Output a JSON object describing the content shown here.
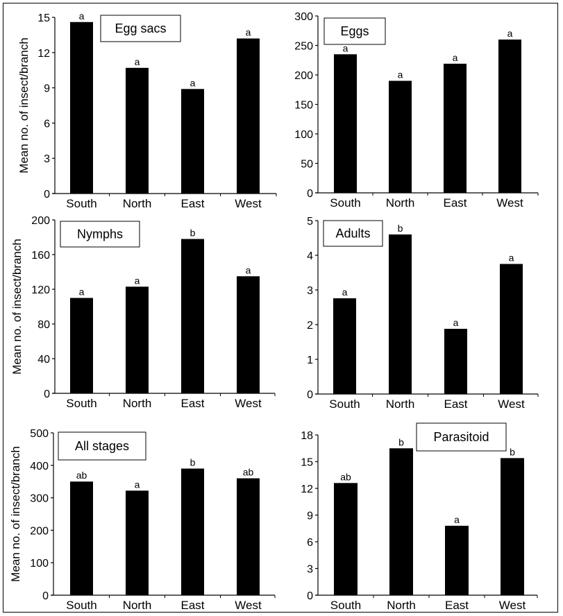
{
  "chart_data": [
    {
      "type": "bar",
      "title": "Egg sacs",
      "categories": [
        "South",
        "North",
        "East",
        "West"
      ],
      "values": [
        14.6,
        10.7,
        8.9,
        13.2
      ],
      "significance": [
        "a",
        "a",
        "a",
        "a"
      ],
      "xlabel": "",
      "ylabel": "Mean no. of insect/branch",
      "ylim": [
        0,
        15
      ],
      "yticks": [
        0,
        3,
        6,
        9,
        12,
        15
      ],
      "grid": false,
      "legend": "none",
      "title_position": "top-center"
    },
    {
      "type": "bar",
      "title": "Eggs",
      "categories": [
        "South",
        "North",
        "East",
        "West"
      ],
      "values": [
        235,
        190,
        219,
        260
      ],
      "significance": [
        "a",
        "a",
        "a",
        "a"
      ],
      "xlabel": "",
      "ylabel": "",
      "ylim": [
        0,
        300
      ],
      "yticks": [
        0,
        50,
        100,
        150,
        200,
        250,
        300
      ],
      "grid": false,
      "legend": "none",
      "title_position": "top-left"
    },
    {
      "type": "bar",
      "title": "Nymphs",
      "categories": [
        "South",
        "North",
        "East",
        "West"
      ],
      "values": [
        110,
        123,
        178,
        135
      ],
      "significance": [
        "a",
        "a",
        "b",
        "a"
      ],
      "xlabel": "",
      "ylabel": "Mean no. of insect/branch",
      "ylim": [
        0,
        200
      ],
      "yticks": [
        0,
        40,
        80,
        120,
        160,
        200
      ],
      "grid": false,
      "legend": "none",
      "title_position": "top-left"
    },
    {
      "type": "bar",
      "title": "Adults",
      "categories": [
        "South",
        "North",
        "East",
        "West"
      ],
      "values": [
        2.76,
        4.6,
        1.88,
        3.75
      ],
      "significance": [
        "a",
        "b",
        "a",
        "a"
      ],
      "xlabel": "",
      "ylabel": "",
      "ylim": [
        0,
        5
      ],
      "yticks": [
        0,
        1,
        2,
        3,
        4,
        5
      ],
      "grid": false,
      "legend": "none",
      "title_position": "top-left"
    },
    {
      "type": "bar",
      "title": "All stages",
      "categories": [
        "South",
        "North",
        "East",
        "West"
      ],
      "values": [
        350,
        322,
        390,
        360
      ],
      "significance": [
        "ab",
        "a",
        "b",
        "ab"
      ],
      "xlabel": "",
      "ylabel": "Mean no. of insect/branch",
      "ylim": [
        0,
        500
      ],
      "yticks": [
        0,
        100,
        200,
        300,
        400,
        500
      ],
      "grid": false,
      "legend": "none",
      "title_position": "top-left"
    },
    {
      "type": "bar",
      "title": "Parasitoid",
      "categories": [
        "South",
        "North",
        "East",
        "West"
      ],
      "values": [
        12.6,
        16.5,
        7.8,
        15.4
      ],
      "significance": [
        "ab",
        "b",
        "a",
        "b"
      ],
      "xlabel": "",
      "ylabel": "",
      "ylim": [
        0,
        18
      ],
      "yticks": [
        0,
        3,
        6,
        9,
        12,
        15,
        18
      ],
      "grid": false,
      "legend": "none",
      "title_position": "top-right"
    }
  ],
  "colors": {
    "bar": "#000000",
    "axis": "#000000",
    "background": "#ffffff"
  }
}
